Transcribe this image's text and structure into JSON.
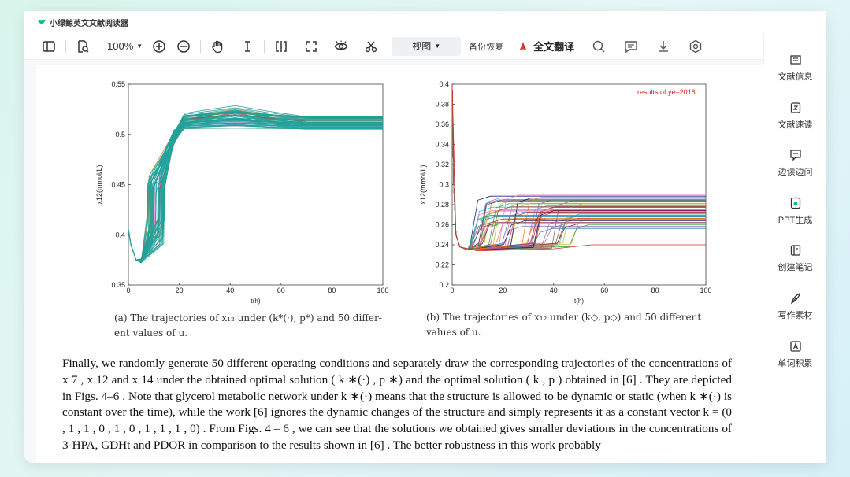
{
  "app": {
    "title": "小绿鲸英文文献阅读器",
    "accent": "#12b886"
  },
  "toolbar": {
    "zoom": "100%",
    "view_label": "视图",
    "backup_label": "备份恢复",
    "translate_label": "全文翻译"
  },
  "sidebar": {
    "items": [
      {
        "label": "文献信息",
        "icon": "doc-info-icon"
      },
      {
        "label": "文献速读",
        "icon": "quick-read-icon"
      },
      {
        "label": "边读边问",
        "icon": "chat-icon"
      },
      {
        "label": "PPT生成",
        "icon": "ppt-icon"
      },
      {
        "label": "创建笔记",
        "icon": "note-icon"
      },
      {
        "label": "写作素材",
        "icon": "pen-icon"
      },
      {
        "label": "单词积累",
        "icon": "word-icon"
      }
    ]
  },
  "chart_data": [
    {
      "type": "line",
      "ylabel": "x12(mmol/L)",
      "xlabel": "t(h)",
      "xlim": [
        0,
        100
      ],
      "ylim": [
        0.35,
        0.55
      ],
      "xticks": [
        "0",
        "20",
        "40",
        "60",
        "80",
        "100"
      ],
      "yticks": [
        "0.35",
        "0.4",
        "0.45",
        "0.5",
        "0.55"
      ],
      "series_count": 50,
      "description_values": {
        "start": 0.405,
        "min": 0.37,
        "steady_range": [
          0.505,
          0.518
        ]
      }
    },
    {
      "type": "line",
      "ylabel": "x12(mmol/L)",
      "xlabel": "t(h)",
      "xlim": [
        0,
        100
      ],
      "ylim": [
        0.2,
        0.4
      ],
      "xticks": [
        "0",
        "20",
        "40",
        "60",
        "80",
        "100"
      ],
      "yticks": [
        "0.2",
        "0.22",
        "0.24",
        "0.26",
        "0.28",
        "0.3",
        "0.32",
        "0.34",
        "0.36",
        "0.38",
        "0.4"
      ],
      "annotation": "results of ye–2018",
      "series_count": 50,
      "description_values": {
        "min": 0.235,
        "steady_range": [
          0.24,
          0.29
        ]
      }
    }
  ],
  "captions": {
    "a_line1": "(a) The trajectories of x₁₂ under (k*(·), p*) and 50 differ-",
    "a_line2": "ent values of u.",
    "b_line1": "(b) The trajectories of x₁₂ under (k◇, p◇) and 50 different",
    "b_line2": "values of u."
  },
  "body": {
    "paragraph": "Finally, we randomly generate 50 different operating conditions and separately draw the corresponding trajectories of the concentrations of x 7 , x 12 and x 14 under the obtained optimal solution ( k ∗(·) , p ∗) and the optimal solution ( k , p ) obtained in [6] . They are depicted in Figs. 4–6 . Note that glycerol metabolic network under k ∗(·) means that the structure is allowed to be dynamic or static (when k ∗(·) is constant over the time), while the work [6] ignores the dynamic changes of the structure and simply represents it as a constant vector k = (0 , 1 , 1 , 0 , 1 , 0 , 1 , 1 , 1 , 0) . From Figs. 4 – 6 , we can see that the solutions we obtained gives smaller deviations in the concentrations of 3-HPA, GDHt and PDOR in comparison to the results shown in [6] . The better robustness in this work probably"
  }
}
